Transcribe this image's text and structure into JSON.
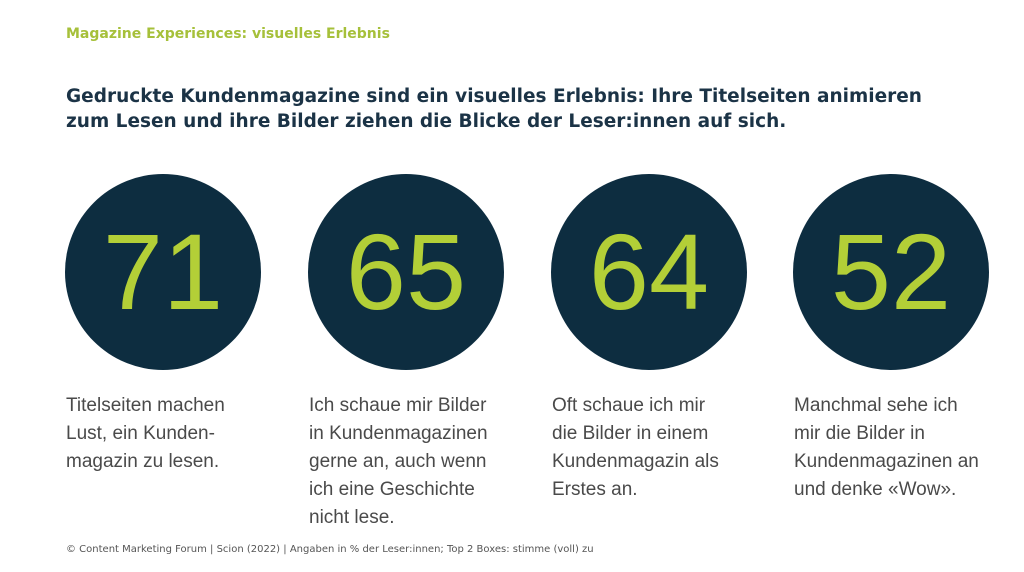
{
  "header": {
    "kicker": "Magazine Experiences: visuelles Erlebnis",
    "title": [
      "Gedruckte Kundenmagazine sind ein visuelles Erlebnis: Ihre Titelseiten animieren",
      "zum Lesen und ihre Bilder ziehen die Blicke der Leser:innen auf sich."
    ]
  },
  "items": [
    {
      "value": 71,
      "label": [
        "Titelseiten machen",
        "Lust, ein Kunden-",
        "magazin zu lesen."
      ]
    },
    {
      "value": 65,
      "label": [
        "Ich schaue mir Bilder",
        "in Kundenmagazinen",
        "gerne an, auch wenn",
        "ich eine Geschichte",
        "nicht lese."
      ]
    },
    {
      "value": 64,
      "label": [
        "Oft schaue ich mir",
        "die Bilder in einem",
        "Kundenmagazin als",
        "Erstes an."
      ]
    },
    {
      "value": 52,
      "label": [
        "Manchmal sehe ich",
        "mir die Bilder in",
        "Kundenmagazinen an",
        "und denke «Wow»."
      ]
    }
  ],
  "footer": "© Content Marketing Forum | Scion (2022) | Angaben in % der Leser:innen; Top 2 Boxes: stimme (voll) zu"
}
